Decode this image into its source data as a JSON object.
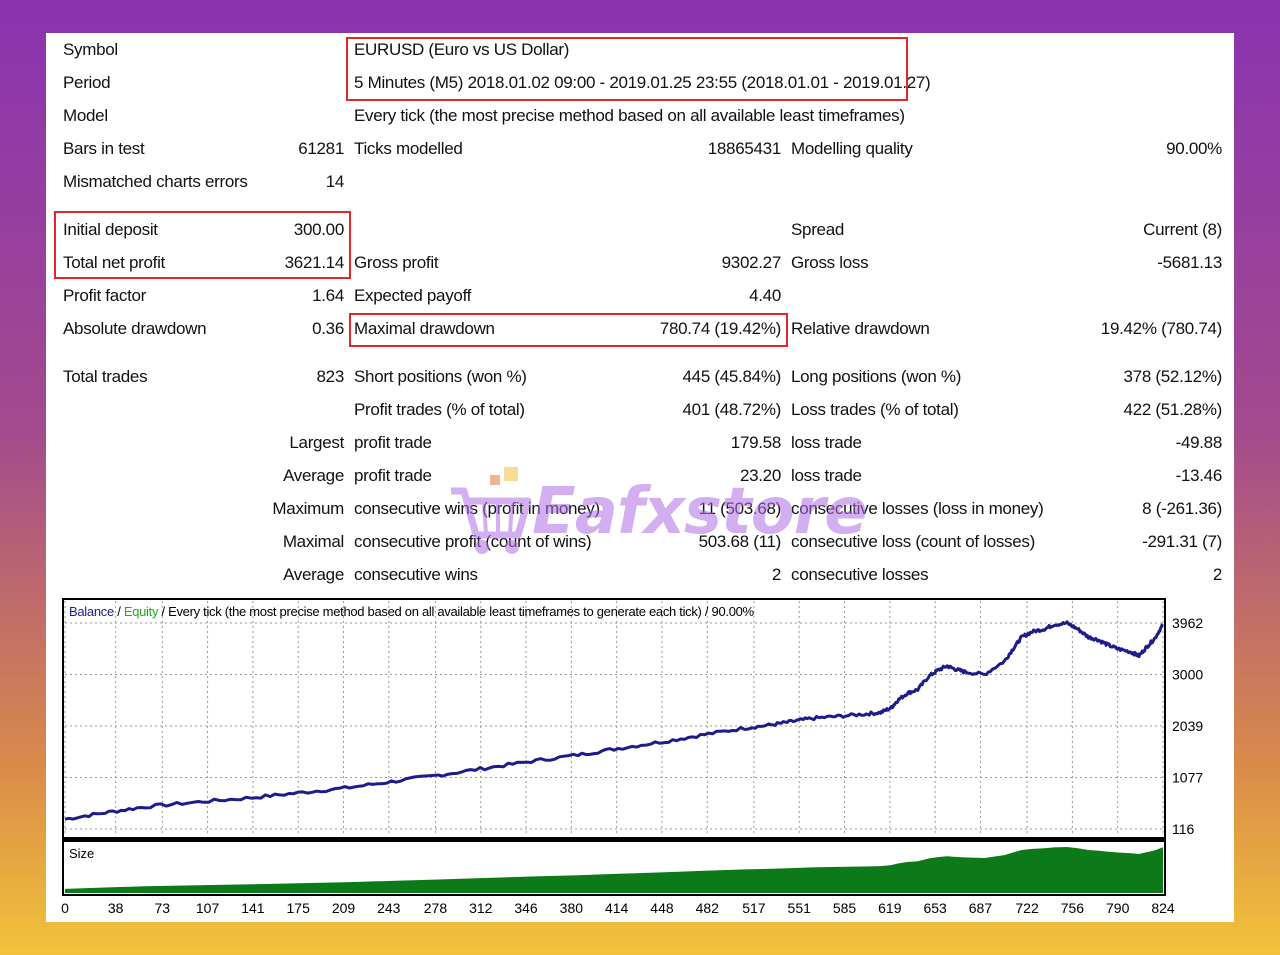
{
  "report": {
    "symbol_label": "Symbol",
    "symbol_value": "EURUSD (Euro vs US Dollar)",
    "period_label": "Period",
    "period_value": "5 Minutes (M5) 2018.01.02 09:00 - 2019.01.25 23:55 (2018.01.01 - 2019.01.27)",
    "model_label": "Model",
    "model_value": "Every tick (the most precise method based on all available least timeframes)",
    "bars_label": "Bars in test",
    "bars_value": "61281",
    "ticks_label": "Ticks modelled",
    "ticks_value": "18865431",
    "quality_label": "Modelling quality",
    "quality_value": "90.00%",
    "mismatch_label": "Mismatched charts errors",
    "mismatch_value": "14",
    "initial_deposit_label": "Initial deposit",
    "initial_deposit_value": "300.00",
    "spread_label": "Spread",
    "spread_value": "Current (8)",
    "net_profit_label": "Total net profit",
    "net_profit_value": "3621.14",
    "gross_profit_label": "Gross profit",
    "gross_profit_value": "9302.27",
    "gross_loss_label": "Gross loss",
    "gross_loss_value": "-5681.13",
    "profit_factor_label": "Profit factor",
    "profit_factor_value": "1.64",
    "expected_payoff_label": "Expected payoff",
    "expected_payoff_value": "4.40",
    "abs_dd_label": "Absolute drawdown",
    "abs_dd_value": "0.36",
    "max_dd_label": "Maximal drawdown",
    "max_dd_value": "780.74 (19.42%)",
    "rel_dd_label": "Relative drawdown",
    "rel_dd_value": "19.42% (780.74)",
    "total_trades_label": "Total trades",
    "total_trades_value": "823",
    "short_label": "Short positions (won %)",
    "short_value": "445 (45.84%)",
    "long_label": "Long positions (won %)",
    "long_value": "378 (52.12%)",
    "profit_trades_label": "Profit trades (% of total)",
    "profit_trades_value": "401 (48.72%)",
    "loss_trades_label": "Loss trades (% of total)",
    "loss_trades_value": "422 (51.28%)",
    "largest_label": "Largest",
    "largest_profit_label": "profit trade",
    "largest_profit_value": "179.58",
    "largest_loss_label": "loss trade",
    "largest_loss_value": "-49.88",
    "average_label": "Average",
    "average_profit_label": "profit trade",
    "average_profit_value": "23.20",
    "average_loss_label": "loss trade",
    "average_loss_value": "-13.46",
    "maximum_label": "Maximum",
    "max_cons_wins_label": "consecutive wins (profit in money)",
    "max_cons_wins_value": "11 (503.68)",
    "max_cons_losses_label": "consecutive losses (loss in money)",
    "max_cons_losses_value": "8 (-261.36)",
    "maximal_label": "Maximal",
    "maximal_cons_profit_label": "consecutive profit (count of wins)",
    "maximal_cons_profit_value": "503.68 (11)",
    "maximal_cons_loss_label": "consecutive loss (count of losses)",
    "maximal_cons_loss_value": "-291.31 (7)",
    "avg_cons_label": "Average",
    "avg_cons_wins_label": "consecutive wins",
    "avg_cons_wins_value": "2",
    "avg_cons_losses_label": "consecutive losses",
    "avg_cons_losses_value": "2"
  },
  "watermark": {
    "text": "Eafxstore"
  },
  "colors": {
    "highlight": "#e0262b",
    "balance": "#1c1c8c",
    "equity": "#22aa22",
    "size_fill": "#0d7a1a"
  },
  "chart_data": {
    "type": "line",
    "legend": {
      "balance": "Balance",
      "separator": " / ",
      "equity": "Equity",
      "description": " / Every tick (the most precise method based on all available least timeframes to generate each tick) / 90.00%"
    },
    "x_ticks": [
      "0",
      "38",
      "73",
      "107",
      "141",
      "175",
      "209",
      "243",
      "278",
      "312",
      "346",
      "380",
      "414",
      "448",
      "482",
      "517",
      "551",
      "585",
      "619",
      "653",
      "687",
      "722",
      "756",
      "790",
      "824"
    ],
    "y_ticks": [
      "3962",
      "3000",
      "2039",
      "1077",
      "116"
    ],
    "ylim": [
      116,
      3962
    ],
    "xlim": [
      0,
      824
    ],
    "series": [
      {
        "name": "Balance",
        "x": [
          0,
          30,
          60,
          100,
          140,
          175,
          210,
          245,
          280,
          315,
          350,
          385,
          415,
          450,
          480,
          510,
          530,
          545,
          560,
          580,
          600,
          612,
          620,
          625,
          632,
          640,
          648,
          655,
          662,
          668,
          675,
          690,
          705,
          712,
          718,
          726,
          735,
          742,
          752,
          760,
          768,
          775,
          782,
          790,
          800,
          806,
          812,
          818,
          824
        ],
        "y": [
          300,
          420,
          530,
          620,
          700,
          790,
          880,
          1000,
          1120,
          1250,
          1380,
          1500,
          1620,
          1750,
          1880,
          2000,
          2060,
          2120,
          2180,
          2220,
          2260,
          2290,
          2380,
          2520,
          2650,
          2720,
          2960,
          3080,
          3160,
          3100,
          3050,
          3000,
          3250,
          3500,
          3700,
          3800,
          3850,
          3930,
          3960,
          3850,
          3700,
          3650,
          3560,
          3480,
          3420,
          3350,
          3520,
          3680,
          3940
        ]
      }
    ],
    "size_panel": {
      "label": "Size"
    }
  }
}
